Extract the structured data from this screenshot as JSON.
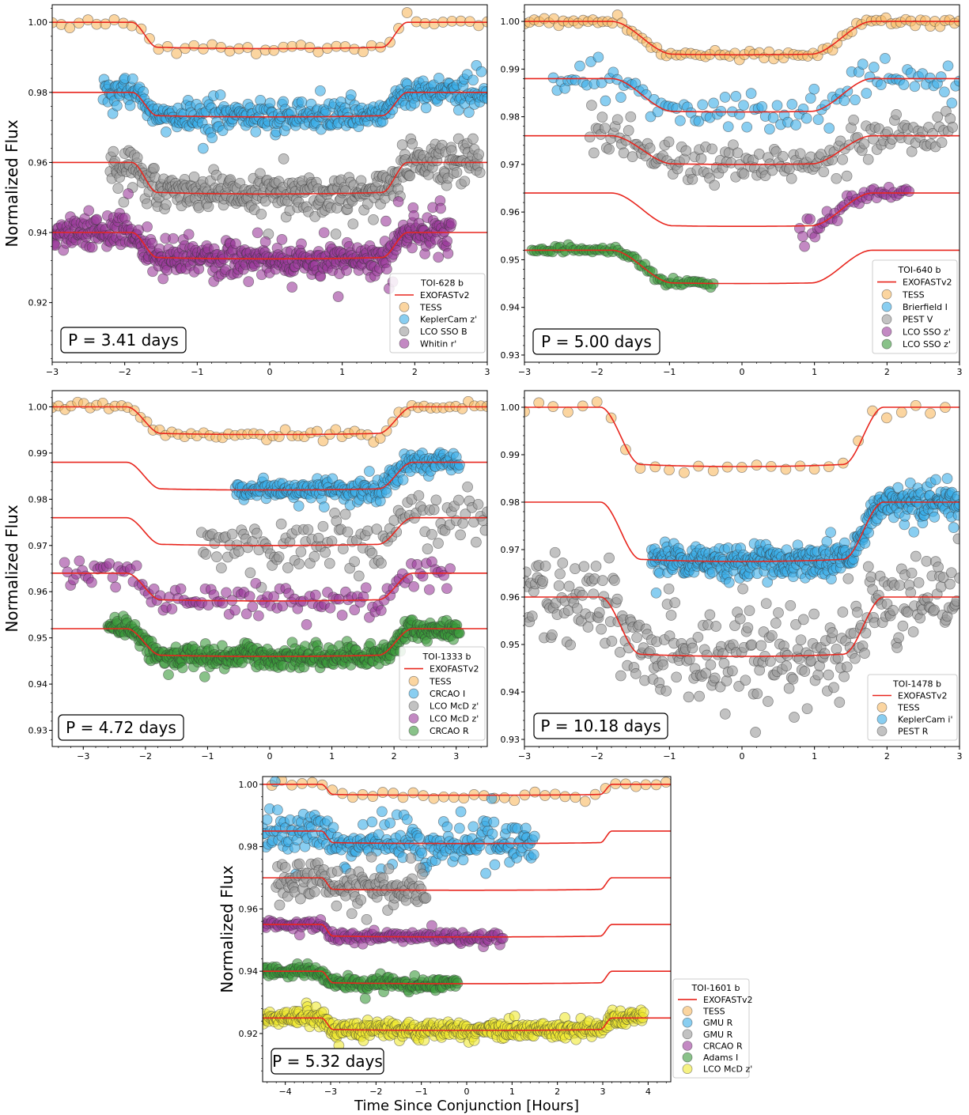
{
  "figure": {
    "ylabel": "Normalized Flux",
    "xlabel": "Time Since Conjunction [Hours]"
  },
  "colors": {
    "TESS": "#f8b960",
    "blue": "#3aaee8",
    "gray": "#9a9a9a",
    "purple": "#9b3a9b",
    "green": "#3a9a3a",
    "yellow": "#f0ea30",
    "model": "#e8261e"
  },
  "chart_data": [
    {
      "type": "scatter",
      "title": "TOI-628 b",
      "period_label": "P = 3.41 days",
      "xlim": [
        -3,
        3
      ],
      "ylim": [
        0.903,
        1.005
      ],
      "xticks": [
        -3,
        -2,
        -1,
        0,
        1,
        2,
        3
      ],
      "yticks": [
        0.92,
        0.94,
        0.96,
        0.98,
        1.0
      ],
      "show_ylabel": true,
      "show_xlabel": false,
      "model_label": "EXOFASTv2",
      "transit": {
        "t14": 3.8,
        "ingress": 0.35
      },
      "series": [
        {
          "name": "TESS",
          "color": "TESS",
          "baseline": 1.0,
          "depth": 0.0075,
          "x_range": [
            -3,
            3
          ],
          "n": 50,
          "scatter": 0.0006
        },
        {
          "name": "KeplerCam z'",
          "color": "blue",
          "baseline": 0.98,
          "depth": 0.007,
          "x_range": [
            -2.3,
            3
          ],
          "n": 380,
          "scatter": 0.0022
        },
        {
          "name": "LCO SSO B",
          "color": "gray",
          "baseline": 0.96,
          "depth": 0.009,
          "x_range": [
            -2.2,
            2.9
          ],
          "n": 380,
          "scatter": 0.0028
        },
        {
          "name": "Whitin r'",
          "color": "purple",
          "baseline": 0.94,
          "depth": 0.0075,
          "x_range": [
            -3,
            2.5
          ],
          "n": 500,
          "scatter": 0.0025
        }
      ]
    },
    {
      "type": "scatter",
      "title": "TOI-640 b",
      "period_label": "P = 5.00 days",
      "xlim": [
        -3,
        3
      ],
      "ylim": [
        0.9285,
        1.0035
      ],
      "xticks": [
        -3,
        -2,
        -1,
        0,
        1,
        2,
        3
      ],
      "yticks": [
        0.93,
        0.94,
        0.95,
        0.96,
        0.97,
        0.98,
        0.99,
        1.0
      ],
      "show_ylabel": false,
      "show_xlabel": false,
      "model_label": "EXOFASTv2",
      "transit": {
        "t14": 3.6,
        "ingress": 0.85
      },
      "series": [
        {
          "name": "TESS",
          "color": "TESS",
          "baseline": 1.0,
          "depth": 0.007,
          "x_range": [
            -3,
            3
          ],
          "n": 90,
          "scatter": 0.0004
        },
        {
          "name": "Brierfield I",
          "color": "blue",
          "baseline": 0.988,
          "depth": 0.007,
          "x_range": [
            -2.6,
            3
          ],
          "n": 110,
          "scatter": 0.0018
        },
        {
          "name": "PEST V",
          "color": "gray",
          "baseline": 0.976,
          "depth": 0.006,
          "x_range": [
            -2.1,
            2.9
          ],
          "n": 170,
          "scatter": 0.002
        },
        {
          "name": "LCO SSO z'",
          "color": "purple",
          "baseline": 0.964,
          "depth": 0.007,
          "x_range": [
            0.8,
            2.3
          ],
          "n": 45,
          "scatter": 0.001
        },
        {
          "name": "LCO SSO z'",
          "color": "green",
          "baseline": 0.952,
          "depth": 0.007,
          "x_range": [
            -2.9,
            -0.4
          ],
          "n": 70,
          "scatter": 0.0004
        }
      ]
    },
    {
      "type": "scatter",
      "title": "TOI-1333 b",
      "period_label": "P = 4.72 days",
      "xlim": [
        -3.5,
        3.5
      ],
      "ylim": [
        0.9265,
        1.0035
      ],
      "xticks": [
        -3,
        -2,
        -1,
        0,
        1,
        2,
        3
      ],
      "yticks": [
        0.93,
        0.94,
        0.95,
        0.96,
        0.97,
        0.98,
        0.99,
        1.0
      ],
      "show_ylabel": true,
      "show_xlabel": false,
      "model_label": "EXOFASTv2",
      "transit": {
        "t14": 4.6,
        "ingress": 0.55
      },
      "series": [
        {
          "name": "TESS",
          "color": "TESS",
          "baseline": 1.0,
          "depth": 0.006,
          "x_range": [
            -3.5,
            3.5
          ],
          "n": 70,
          "scatter": 0.0005
        },
        {
          "name": "CRCAO I",
          "color": "blue",
          "baseline": 0.988,
          "depth": 0.006,
          "x_range": [
            -0.55,
            3.05
          ],
          "n": 220,
          "scatter": 0.0011
        },
        {
          "name": "LCO McD z'",
          "color": "gray",
          "baseline": 0.976,
          "depth": 0.006,
          "x_range": [
            -1.1,
            3.5
          ],
          "n": 130,
          "scatter": 0.0025
        },
        {
          "name": "LCO McD z'",
          "color": "purple",
          "baseline": 0.964,
          "depth": 0.006,
          "x_range": [
            -3.3,
            2.9
          ],
          "n": 130,
          "scatter": 0.0016
        },
        {
          "name": "CRCAO R",
          "color": "green",
          "baseline": 0.952,
          "depth": 0.006,
          "x_range": [
            -2.6,
            3.05
          ],
          "n": 420,
          "scatter": 0.0012
        }
      ]
    },
    {
      "type": "scatter",
      "title": "TOI-1478 b",
      "period_label": "P = 10.18 days",
      "xlim": [
        -3,
        3
      ],
      "ylim": [
        0.9285,
        1.0035
      ],
      "xticks": [
        -3,
        -2,
        -1,
        0,
        1,
        2,
        3
      ],
      "yticks": [
        0.93,
        0.94,
        0.95,
        0.96,
        0.97,
        0.98,
        0.99,
        1.0
      ],
      "show_ylabel": false,
      "show_xlabel": false,
      "model_label": "EXOFASTv2",
      "transit": {
        "t14": 3.9,
        "ingress": 0.55
      },
      "series": [
        {
          "name": "TESS",
          "color": "TESS",
          "baseline": 1.0,
          "depth": 0.0125,
          "x_range": [
            -3,
            2.8
          ],
          "n": 30,
          "scatter": 0.0008
        },
        {
          "name": "KeplerCam i'",
          "color": "blue",
          "baseline": 0.98,
          "depth": 0.0125,
          "x_range": [
            -1.25,
            3
          ],
          "n": 420,
          "scatter": 0.0018
        },
        {
          "name": "PEST R",
          "color": "gray",
          "baseline": 0.96,
          "depth": 0.0125,
          "x_range": [
            -3,
            3
          ],
          "n": 330,
          "scatter": 0.0045
        }
      ]
    },
    {
      "type": "scatter",
      "title": "TOI-1601 b",
      "period_label": "P = 5.32 days",
      "xlim": [
        -4.5,
        4.5
      ],
      "ylim": [
        0.9045,
        1.0025
      ],
      "xticks": [
        -4,
        -3,
        -2,
        -1,
        0,
        1,
        2,
        3,
        4
      ],
      "yticks": [
        0.92,
        0.94,
        0.96,
        0.98,
        1.0
      ],
      "show_ylabel": true,
      "show_xlabel": true,
      "model_label": "EXOFASTv2",
      "transit": {
        "t14": 6.4,
        "ingress": 0.25
      },
      "series": [
        {
          "name": "TESS",
          "color": "TESS",
          "baseline": 1.0,
          "depth": 0.0035,
          "x_range": [
            -4.3,
            4.4
          ],
          "n": 40,
          "scatter": 0.0008
        },
        {
          "name": "GMU R",
          "color": "blue",
          "baseline": 0.985,
          "depth": 0.004,
          "x_range": [
            -4.5,
            1.5
          ],
          "n": 240,
          "scatter": 0.0035
        },
        {
          "name": "GMU R",
          "color": "gray",
          "baseline": 0.97,
          "depth": 0.004,
          "x_range": [
            -4.2,
            -0.9
          ],
          "n": 130,
          "scatter": 0.003
        },
        {
          "name": "CRCAO R",
          "color": "purple",
          "baseline": 0.955,
          "depth": 0.004,
          "x_range": [
            -4.5,
            0.8
          ],
          "n": 150,
          "scatter": 0.0009
        },
        {
          "name": "Adams I",
          "color": "green",
          "baseline": 0.94,
          "depth": 0.004,
          "x_range": [
            -4.5,
            -0.2
          ],
          "n": 170,
          "scatter": 0.001
        },
        {
          "name": "LCO McD z'",
          "color": "yellow",
          "baseline": 0.925,
          "depth": 0.004,
          "x_range": [
            -4.5,
            3.9
          ],
          "n": 480,
          "scatter": 0.0012
        }
      ]
    }
  ]
}
